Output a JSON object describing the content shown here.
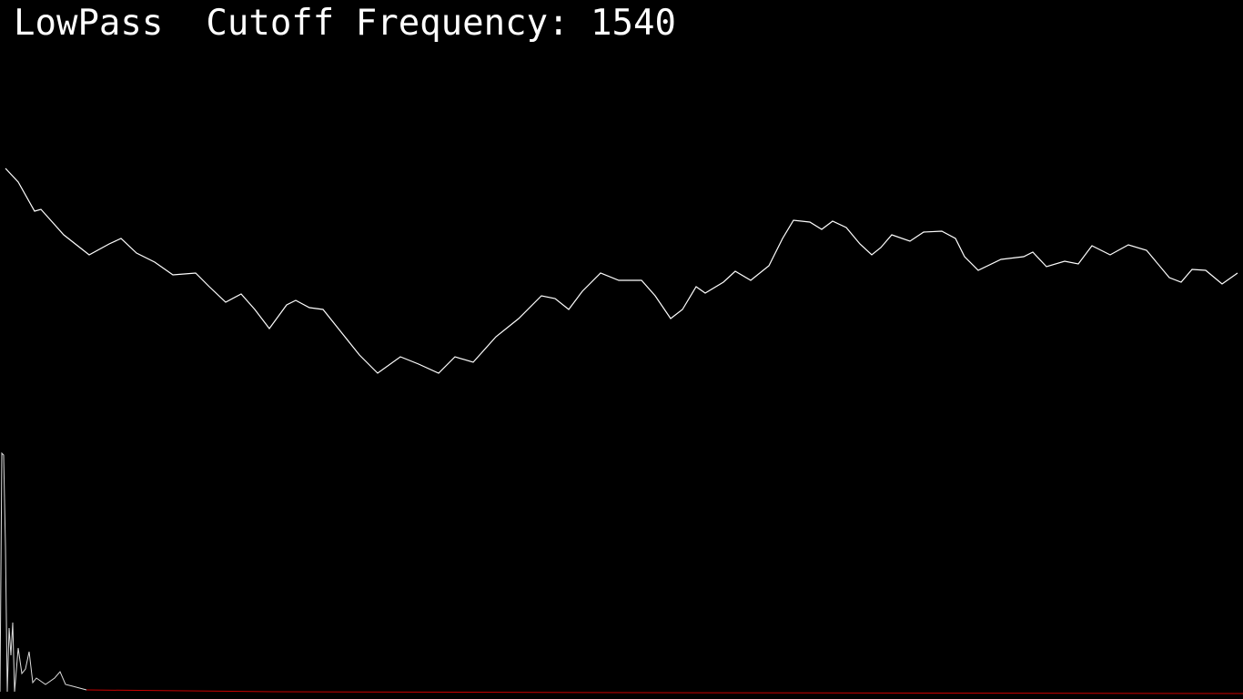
{
  "filter": {
    "type": "LowPass",
    "label": "Cutoff Frequency:",
    "value": 1540
  }
}
